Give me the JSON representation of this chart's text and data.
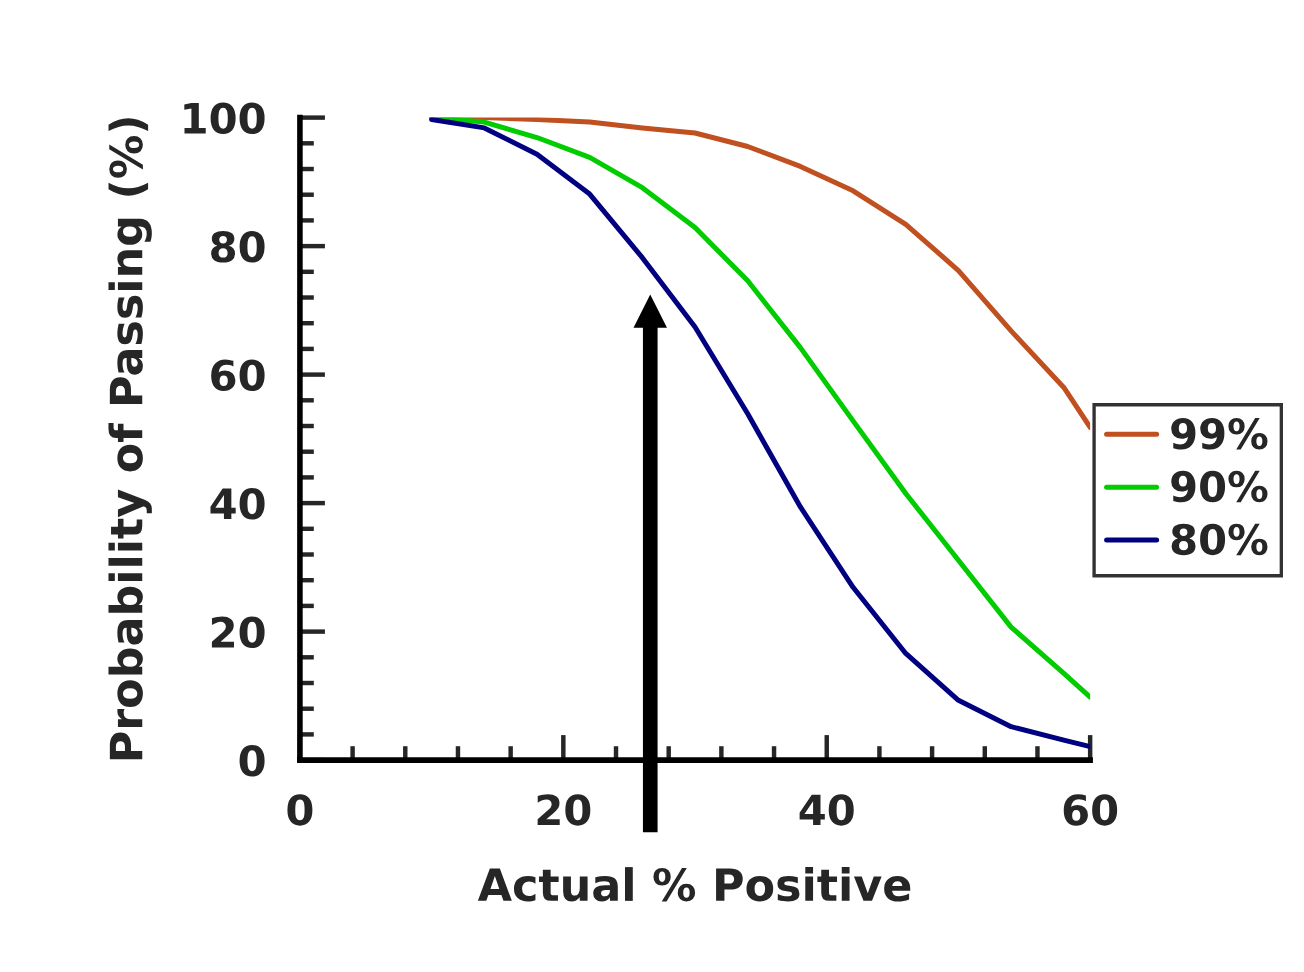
{
  "chart_data": {
    "type": "line",
    "xlabel": "Actual % Positive",
    "ylabel": "Probability of Passing (%)",
    "x": [
      10,
      14,
      18,
      22,
      26,
      30,
      34,
      38,
      42,
      46,
      50,
      54,
      58,
      60
    ],
    "series": [
      {
        "name": "99%",
        "color": "#c0501f",
        "values": [
          100,
          100,
          99.7,
          99.3,
          98.4,
          97.6,
          95.5,
          92.4,
          88.6,
          83.4,
          76.2,
          66.8,
          58,
          51.8
        ]
      },
      {
        "name": "90%",
        "color": "#00cc00",
        "values": [
          100,
          99.3,
          96.9,
          93.8,
          89.1,
          82.9,
          74.6,
          64.2,
          52.8,
          41.5,
          31.1,
          20.7,
          13.5,
          9.8
        ]
      },
      {
        "name": "80%",
        "color": "#000080",
        "values": [
          99.7,
          98.4,
          94.3,
          88.1,
          78.2,
          67.4,
          53.9,
          39.4,
          26.9,
          16.6,
          9.3,
          5.2,
          3.1,
          2.1
        ]
      }
    ],
    "xlim": [
      0,
      60
    ],
    "ylim": [
      0,
      100
    ],
    "xticks": [
      0,
      20,
      40,
      60
    ],
    "yticks": [
      0,
      20,
      40,
      60,
      80,
      100
    ],
    "grid": false,
    "legend": "right",
    "marker": "none",
    "line_style": "solid"
  }
}
